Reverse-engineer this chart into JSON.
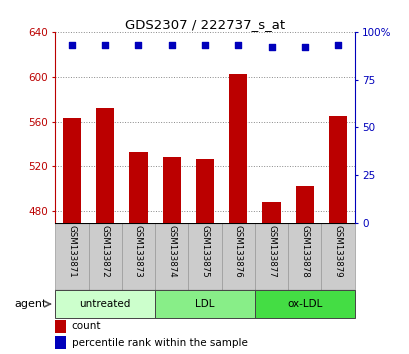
{
  "title": "GDS2307 / 222737_s_at",
  "samples": [
    "GSM133871",
    "GSM133872",
    "GSM133873",
    "GSM133874",
    "GSM133875",
    "GSM133876",
    "GSM133877",
    "GSM133878",
    "GSM133879"
  ],
  "counts": [
    563,
    572,
    533,
    528,
    527,
    602,
    488,
    503,
    565
  ],
  "percentiles": [
    93,
    93,
    93,
    93,
    93,
    93,
    92,
    92,
    93
  ],
  "ylim_left": [
    470,
    640
  ],
  "ylim_right": [
    0,
    100
  ],
  "yticks_left": [
    480,
    520,
    560,
    600,
    640
  ],
  "yticks_right": [
    0,
    25,
    50,
    75,
    100
  ],
  "bar_color": "#bb0000",
  "dot_color": "#0000bb",
  "groups": [
    {
      "label": "untreated",
      "start": 0,
      "end": 3,
      "color": "#ccffcc"
    },
    {
      "label": "LDL",
      "start": 3,
      "end": 6,
      "color": "#88ee88"
    },
    {
      "label": "ox-LDL",
      "start": 6,
      "end": 9,
      "color": "#44dd44"
    }
  ],
  "agent_label": "agent",
  "legend_count_label": "count",
  "legend_pct_label": "percentile rank within the sample",
  "grid_color": "#888888",
  "xlabel_bg": "#cccccc",
  "xlabel_border": "#999999"
}
